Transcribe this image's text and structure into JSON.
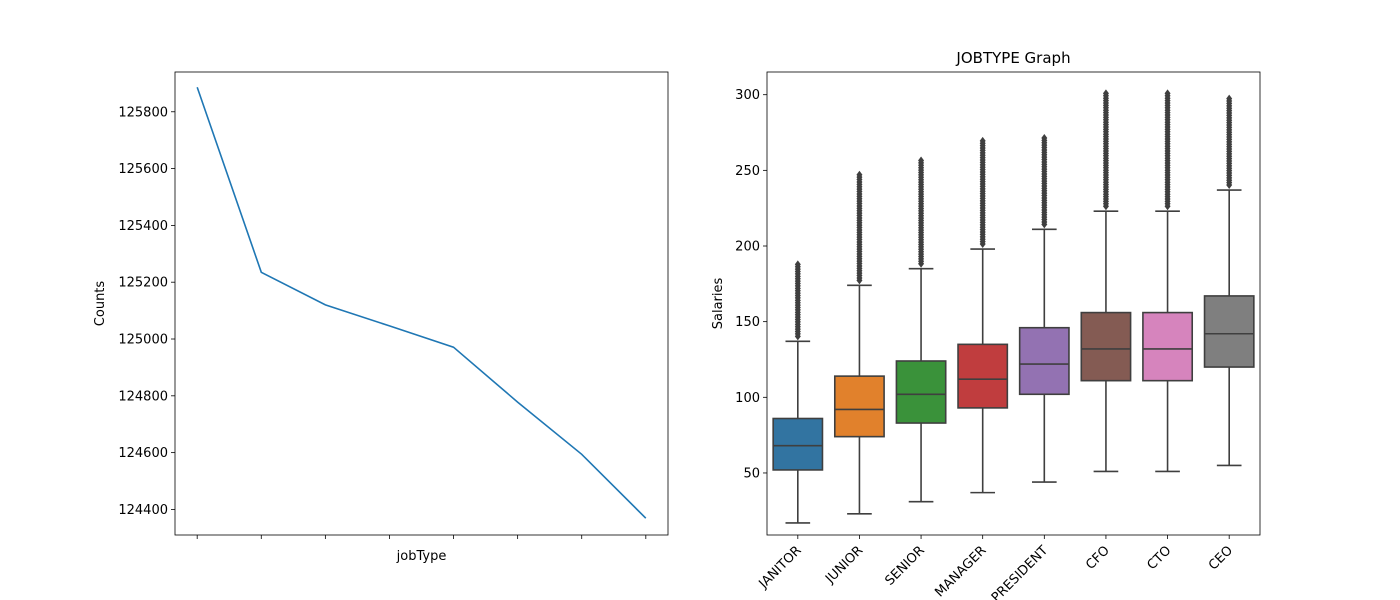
{
  "chart_data": [
    {
      "type": "line",
      "title": "",
      "xlabel": "jobType",
      "ylabel": "Counts",
      "x_tick_labels": [
        "",
        "",
        "",
        "",
        "",
        "",
        "",
        ""
      ],
      "y_ticks": [
        124400,
        124600,
        124800,
        125000,
        125200,
        125400,
        125600,
        125800
      ],
      "ylim": [
        124310,
        125940
      ],
      "series": [
        {
          "values": [
            125886,
            125235,
            125120,
            125046,
            124971,
            124778,
            124594,
            124369
          ]
        }
      ],
      "color": "#1f77b4",
      "grid": false
    },
    {
      "type": "box",
      "title": "JOBTYPE Graph",
      "xlabel": "",
      "ylabel": "Salaries",
      "categories": [
        "JANITOR",
        "JUNIOR",
        "SENIOR",
        "MANAGER",
        "PRESIDENT",
        "CFO",
        "CTO",
        "CEO"
      ],
      "y_ticks": [
        50,
        100,
        150,
        200,
        250,
        300
      ],
      "ylim": [
        9,
        315
      ],
      "boxes": [
        {
          "whisker_low": 17,
          "q1": 52,
          "median": 68,
          "q3": 86,
          "whisker_high": 137,
          "outlier_max": 189
        },
        {
          "whisker_low": 23,
          "q1": 74,
          "median": 92,
          "q3": 114,
          "whisker_high": 174,
          "outlier_max": 248
        },
        {
          "whisker_low": 31,
          "q1": 83,
          "median": 102,
          "q3": 124,
          "whisker_high": 185,
          "outlier_max": 258
        },
        {
          "whisker_low": 37,
          "q1": 93,
          "median": 112,
          "q3": 135,
          "whisker_high": 198,
          "outlier_max": 270
        },
        {
          "whisker_low": 44,
          "q1": 102,
          "median": 122,
          "q3": 146,
          "whisker_high": 211,
          "outlier_max": 272
        },
        {
          "whisker_low": 51,
          "q1": 111,
          "median": 132,
          "q3": 156,
          "whisker_high": 223,
          "outlier_max": 301
        },
        {
          "whisker_low": 51,
          "q1": 111,
          "median": 132,
          "q3": 156,
          "whisker_high": 223,
          "outlier_max": 301
        },
        {
          "whisker_low": 55,
          "q1": 120,
          "median": 142,
          "q3": 167,
          "whisker_high": 237,
          "outlier_max": 298
        }
      ],
      "colors": [
        "#3274a1",
        "#e1812c",
        "#3a923a",
        "#c03d3e",
        "#9372b2",
        "#845b53",
        "#d684bd",
        "#7f7f7f"
      ],
      "grid": false
    }
  ]
}
